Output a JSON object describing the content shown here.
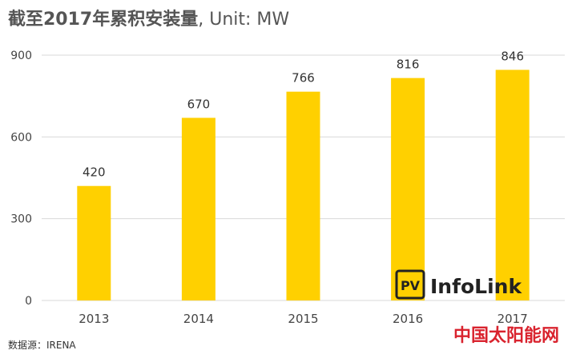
{
  "title": {
    "bold_part": "截至2017年累积安装量",
    "unit_part": ", Unit: MW"
  },
  "source": "数据源：IRENA",
  "watermark": {
    "brand": "InfoLink",
    "brand_badge": "PV",
    "site": "中国太阳能网"
  },
  "colors": {
    "bar": "#ffd000",
    "grid": "#d9d9d9",
    "axis_text": "#444444",
    "watermark_red": "#d9232e"
  },
  "chart_data": {
    "type": "bar",
    "title": "截至2017年累积安装量, Unit: MW",
    "categories": [
      "2013",
      "2014",
      "2015",
      "2016",
      "2017"
    ],
    "values": [
      420,
      670,
      766,
      816,
      846
    ],
    "data_labels": [
      "420",
      "670",
      "766",
      "816",
      "846"
    ],
    "y_ticks": [
      0,
      300,
      600,
      900
    ],
    "ylim": [
      0,
      900
    ],
    "xlabel": "",
    "ylabel": "",
    "grid": true,
    "legend": "none"
  }
}
